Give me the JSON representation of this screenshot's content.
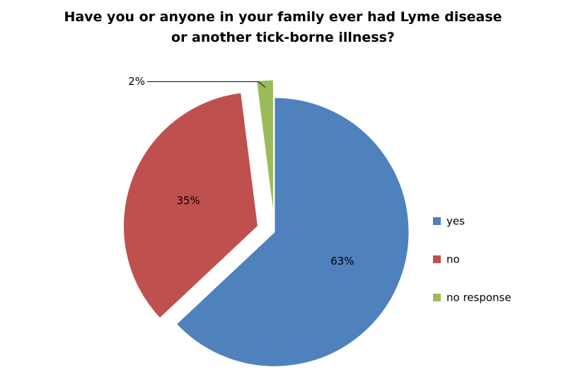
{
  "chart_data": {
    "type": "pie",
    "title": "Have you or anyone in your family ever had Lyme disease or another tick-borne illness?",
    "categories": [
      "yes",
      "no",
      "no response"
    ],
    "values": [
      63,
      35,
      2
    ],
    "value_labels": [
      "63%",
      "35%",
      "2%"
    ],
    "colors": [
      "#4f81bd",
      "#c0504d",
      "#9bbb59"
    ],
    "legend": "right"
  }
}
